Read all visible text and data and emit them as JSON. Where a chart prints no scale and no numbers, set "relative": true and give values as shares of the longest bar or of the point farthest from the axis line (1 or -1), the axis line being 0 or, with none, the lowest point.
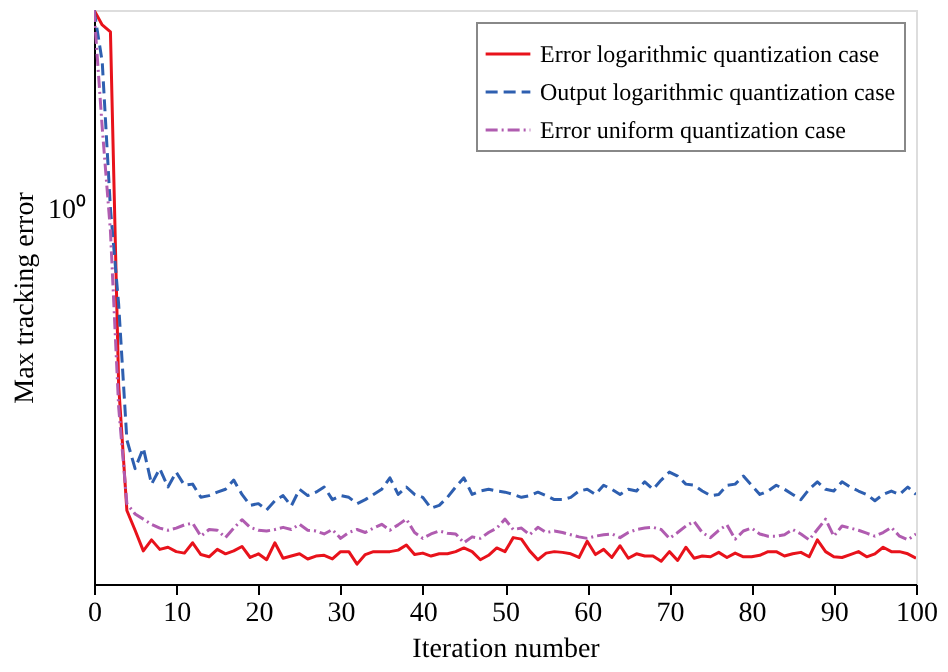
{
  "chart_data": {
    "type": "line",
    "relative": true,
    "xlabel": "Iteration number",
    "ylabel": "Max tracking error",
    "grid": false,
    "legend": "top right",
    "marker": "none",
    "annotations": [
      "10⁰"
    ],
    "xlim": [
      0,
      100
    ],
    "xticks": [
      0,
      10,
      20,
      30,
      40,
      50,
      60,
      70,
      80,
      90,
      100
    ],
    "x": [
      0,
      1,
      2,
      3,
      4,
      5,
      6,
      7,
      8,
      9,
      10,
      11,
      12,
      13,
      14,
      15,
      16,
      17,
      18,
      19,
      20,
      21,
      22,
      23,
      24,
      25,
      26,
      27,
      28,
      29,
      30,
      31,
      32,
      33,
      34,
      35,
      36,
      37,
      38,
      39,
      40,
      41,
      42,
      43,
      44,
      45,
      46,
      47,
      48,
      49,
      50,
      51,
      52,
      53,
      54,
      55,
      56,
      57,
      58,
      59,
      60,
      61,
      62,
      63,
      64,
      65,
      66,
      67,
      68,
      69,
      70,
      71,
      72,
      73,
      74,
      75,
      76,
      77,
      78,
      79,
      80,
      81,
      82,
      83,
      84,
      85,
      86,
      87,
      88,
      89,
      90,
      91,
      92,
      93,
      94,
      95,
      96,
      97,
      98,
      99,
      100
    ],
    "series": [
      {
        "name": "Error logarithmic quantization case",
        "color": "#e8121b",
        "line_style": "solid",
        "values": [
          1,
          0.974,
          0.962,
          0.346,
          0.128,
          0.0936,
          0.0577,
          0.0769,
          0.0603,
          0.0641,
          0.0564,
          0.0538,
          0.0718,
          0.0513,
          0.0474,
          0.0603,
          0.0526,
          0.0577,
          0.0654,
          0.0462,
          0.0526,
          0.0423,
          0.0718,
          0.0449,
          0.0487,
          0.0526,
          0.0436,
          0.0487,
          0.05,
          0.0436,
          0.0564,
          0.0564,
          0.0346,
          0.0513,
          0.0564,
          0.0564,
          0.0564,
          0.059,
          0.0679,
          0.0513,
          0.0538,
          0.0487,
          0.0526,
          0.0526,
          0.0564,
          0.0628,
          0.0564,
          0.0423,
          0.05,
          0.0628,
          0.0564,
          0.0808,
          0.0782,
          0.0577,
          0.0423,
          0.0538,
          0.0564,
          0.0551,
          0.0526,
          0.0462,
          0.0744,
          0.0513,
          0.0603,
          0.0462,
          0.0667,
          0.0449,
          0.0526,
          0.0487,
          0.0487,
          0.0397,
          0.0564,
          0.041,
          0.0641,
          0.0449,
          0.0487,
          0.0474,
          0.0551,
          0.0462,
          0.0538,
          0.0474,
          0.0474,
          0.05,
          0.0564,
          0.0564,
          0.0487,
          0.0526,
          0.0551,
          0.0474,
          0.0769,
          0.0564,
          0.0474,
          0.0462,
          0.0513,
          0.0564,
          0.0474,
          0.0526,
          0.0641,
          0.0564,
          0.0564,
          0.0526,
          0.0449
        ]
      },
      {
        "name": "Output logarithmic quantization case",
        "color": "#2e5fb0",
        "line_style": "dashed",
        "values": [
          1,
          0.91,
          0.654,
          0.487,
          0.251,
          0.201,
          0.237,
          0.174,
          0.201,
          0.169,
          0.195,
          0.172,
          0.174,
          0.151,
          0.154,
          0.16,
          0.165,
          0.181,
          0.156,
          0.137,
          0.14,
          0.129,
          0.145,
          0.154,
          0.136,
          0.165,
          0.154,
          0.16,
          0.169,
          0.147,
          0.154,
          0.151,
          0.14,
          0.147,
          0.156,
          0.165,
          0.185,
          0.156,
          0.169,
          0.156,
          0.151,
          0.132,
          0.137,
          0.151,
          0.169,
          0.185,
          0.156,
          0.162,
          0.165,
          0.162,
          0.16,
          0.156,
          0.151,
          0.154,
          0.16,
          0.154,
          0.147,
          0.147,
          0.151,
          0.162,
          0.165,
          0.156,
          0.172,
          0.165,
          0.156,
          0.165,
          0.162,
          0.178,
          0.165,
          0.181,
          0.195,
          0.188,
          0.174,
          0.172,
          0.162,
          0.154,
          0.156,
          0.172,
          0.174,
          0.188,
          0.172,
          0.156,
          0.162,
          0.172,
          0.165,
          0.156,
          0.147,
          0.165,
          0.178,
          0.165,
          0.162,
          0.178,
          0.169,
          0.162,
          0.156,
          0.145,
          0.156,
          0.162,
          0.156,
          0.169,
          0.156
        ]
      },
      {
        "name": "Error uniform quantization case",
        "color": "#b05cb0",
        "line_style": "dashdot",
        "values": [
          1,
          0.795,
          0.615,
          0.308,
          0.14,
          0.122,
          0.113,
          0.104,
          0.0974,
          0.0936,
          0.0974,
          0.103,
          0.106,
          0.0833,
          0.0949,
          0.0936,
          0.0808,
          0.0974,
          0.112,
          0.0987,
          0.0936,
          0.0923,
          0.0949,
          0.0987,
          0.0949,
          0.104,
          0.0936,
          0.0923,
          0.0872,
          0.0949,
          0.0795,
          0.0897,
          0.0949,
          0.0897,
          0.0974,
          0.104,
          0.0936,
          0.103,
          0.113,
          0.0897,
          0.0795,
          0.0872,
          0.0923,
          0.0885,
          0.0872,
          0.0718,
          0.0821,
          0.0795,
          0.0897,
          0.0974,
          0.113,
          0.0949,
          0.0974,
          0.0859,
          0.0987,
          0.0897,
          0.0923,
          0.0897,
          0.0859,
          0.0821,
          0.0795,
          0.0833,
          0.0859,
          0.0872,
          0.0808,
          0.0897,
          0.0949,
          0.0974,
          0.0987,
          0.0949,
          0.0795,
          0.0897,
          0.101,
          0.109,
          0.0897,
          0.0808,
          0.0936,
          0.103,
          0.0782,
          0.0923,
          0.0974,
          0.0872,
          0.0833,
          0.0833,
          0.0859,
          0.0949,
          0.0872,
          0.0769,
          0.0949,
          0.113,
          0.0833,
          0.101,
          0.0974,
          0.0936,
          0.0885,
          0.0833,
          0.0897,
          0.0987,
          0.0833,
          0.0769,
          0.0872
        ]
      }
    ]
  }
}
